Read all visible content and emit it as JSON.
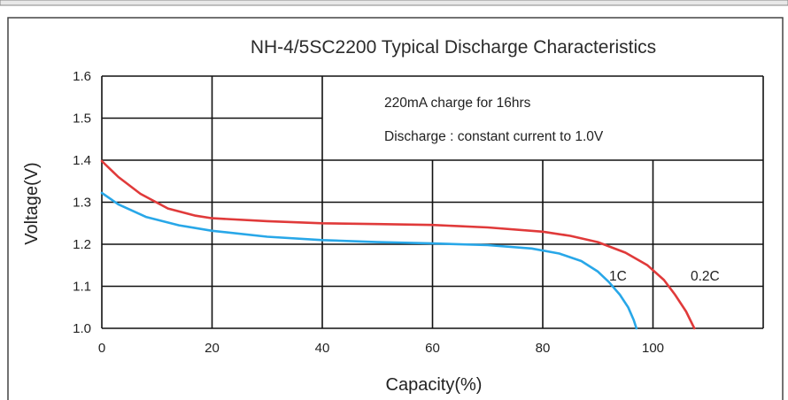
{
  "chart_data": {
    "type": "line",
    "title": "NH-4/5SC2200 Typical Discharge Characteristics",
    "xlabel": "Capacity(%)",
    "ylabel": "Voltage(V)",
    "xlim": [
      0,
      120
    ],
    "ylim": [
      1.0,
      1.6
    ],
    "x_ticks": [
      "0",
      "20",
      "40",
      "60",
      "80",
      "100"
    ],
    "y_ticks": [
      "1.0",
      "1.1",
      "1.2",
      "1.3",
      "1.4",
      "1.5",
      "1.6"
    ],
    "grid": true,
    "annotations": [
      "220mA charge for 16hrs",
      "Discharge : constant current to 1.0V"
    ],
    "series": [
      {
        "name": "0.2C",
        "color": "#e03a3a",
        "points": [
          [
            0,
            1.398
          ],
          [
            3,
            1.36
          ],
          [
            7,
            1.32
          ],
          [
            12,
            1.285
          ],
          [
            17,
            1.268
          ],
          [
            20,
            1.262
          ],
          [
            30,
            1.255
          ],
          [
            40,
            1.25
          ],
          [
            50,
            1.248
          ],
          [
            60,
            1.246
          ],
          [
            70,
            1.24
          ],
          [
            80,
            1.23
          ],
          [
            85,
            1.22
          ],
          [
            90,
            1.205
          ],
          [
            95,
            1.18
          ],
          [
            99,
            1.15
          ],
          [
            102,
            1.115
          ],
          [
            104,
            1.08
          ],
          [
            106,
            1.04
          ],
          [
            107.5,
            1.0
          ]
        ]
      },
      {
        "name": "1C",
        "color": "#28a7e8",
        "points": [
          [
            0,
            1.322
          ],
          [
            3,
            1.295
          ],
          [
            8,
            1.265
          ],
          [
            14,
            1.245
          ],
          [
            20,
            1.232
          ],
          [
            30,
            1.218
          ],
          [
            40,
            1.21
          ],
          [
            50,
            1.205
          ],
          [
            60,
            1.202
          ],
          [
            70,
            1.198
          ],
          [
            78,
            1.19
          ],
          [
            83,
            1.178
          ],
          [
            87,
            1.16
          ],
          [
            90,
            1.135
          ],
          [
            92,
            1.11
          ],
          [
            94,
            1.08
          ],
          [
            95.5,
            1.05
          ],
          [
            96.5,
            1.02
          ],
          [
            97,
            1.0
          ]
        ]
      }
    ]
  }
}
